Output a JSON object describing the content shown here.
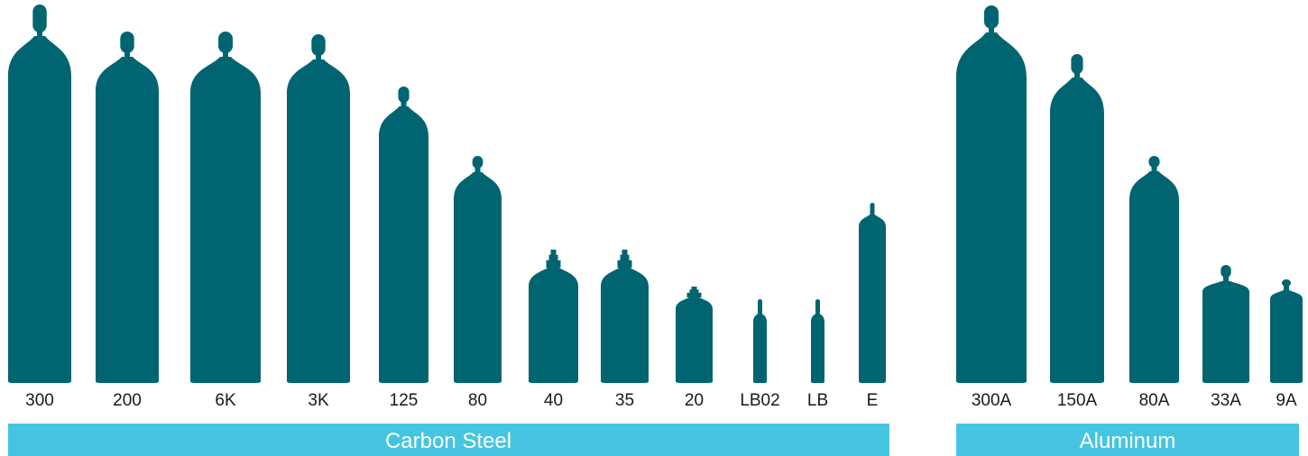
{
  "colors": {
    "cylinder": "#006571",
    "band": "#45c5e2",
    "band_text": "#ffffff",
    "label_text": "#1a1a1a"
  },
  "groups": {
    "carbon_steel": {
      "label": "Carbon Steel",
      "cylinders": [
        {
          "name": "300",
          "valve": "dome"
        },
        {
          "name": "200",
          "valve": "dome"
        },
        {
          "name": "6K",
          "valve": "dome"
        },
        {
          "name": "3K",
          "valve": "dome"
        },
        {
          "name": "125",
          "valve": "dome"
        },
        {
          "name": "80",
          "valve": "dome"
        },
        {
          "name": "40",
          "valve": "stepped"
        },
        {
          "name": "35",
          "valve": "stepped"
        },
        {
          "name": "20",
          "valve": "stepped"
        },
        {
          "name": "LB02",
          "valve": "thin"
        },
        {
          "name": "LB",
          "valve": "thin"
        },
        {
          "name": "E",
          "valve": "thin"
        }
      ]
    },
    "aluminum": {
      "label": "Aluminum",
      "cylinders": [
        {
          "name": "300A",
          "valve": "dome"
        },
        {
          "name": "150A",
          "valve": "dome"
        },
        {
          "name": "80A",
          "valve": "dome"
        },
        {
          "name": "33A",
          "valve": "dome"
        },
        {
          "name": "9A",
          "valve": "dome"
        }
      ]
    }
  }
}
